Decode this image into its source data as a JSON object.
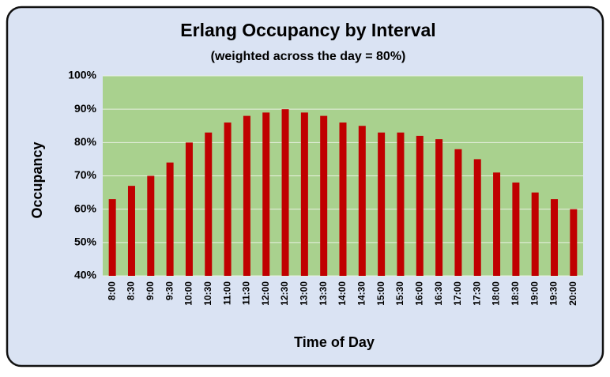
{
  "chart_data": {
    "type": "bar",
    "title": "Erlang Occupancy by Interval",
    "subtitle": "(weighted across the day = 80%)",
    "y_axis_label": "Occupancy",
    "x_axis_label": "Time of Day",
    "categories": [
      "8:00",
      "8:30",
      "9:00",
      "9:30",
      "10:00",
      "10:30",
      "11:00",
      "11:30",
      "12:00",
      "12:30",
      "13:00",
      "13:30",
      "14:00",
      "14:30",
      "15:00",
      "15:30",
      "16:00",
      "16:30",
      "17:00",
      "17:30",
      "18:00",
      "18:30",
      "19:00",
      "19:30",
      "20:00"
    ],
    "values": [
      63,
      67,
      70,
      74,
      80,
      83,
      86,
      88,
      89,
      90,
      89,
      88,
      86,
      85,
      83,
      83,
      82,
      81,
      78,
      75,
      71,
      68,
      65,
      63,
      60
    ],
    "color": "#c00000",
    "ylim": [
      40,
      100
    ],
    "yticks": [
      {
        "value": 40,
        "label": "40%"
      },
      {
        "value": 50,
        "label": "50%"
      },
      {
        "value": 60,
        "label": "60%"
      },
      {
        "value": 70,
        "label": "70%"
      },
      {
        "value": 80,
        "label": "80%"
      },
      {
        "value": 90,
        "label": "90%"
      },
      {
        "value": 100,
        "label": "100%"
      }
    ],
    "grid": true
  }
}
